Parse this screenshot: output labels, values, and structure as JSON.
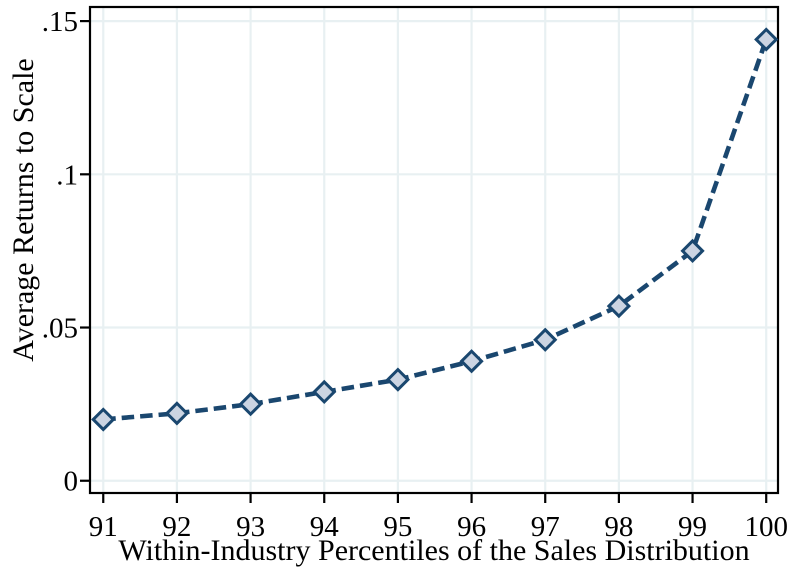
{
  "chart_data": {
    "type": "line",
    "title": "",
    "xlabel": "Within-Industry Percentiles of the Sales Distribution",
    "ylabel": "Average Returns to Scale",
    "x": [
      91,
      92,
      93,
      94,
      95,
      96,
      97,
      98,
      99,
      100
    ],
    "series": [
      {
        "name": "average-returns-to-scale",
        "values": [
          0.02,
          0.022,
          0.025,
          0.029,
          0.033,
          0.039,
          0.046,
          0.057,
          0.075,
          0.144
        ]
      }
    ],
    "xticks": {
      "values": [
        91,
        92,
        93,
        94,
        95,
        96,
        97,
        98,
        99,
        100
      ],
      "labels": [
        "91",
        "92",
        "93",
        "94",
        "95",
        "96",
        "97",
        "98",
        "99",
        "100"
      ]
    },
    "yticks": {
      "values": [
        0,
        0.05,
        0.1,
        0.15
      ],
      "labels": [
        "0",
        ".05",
        ".1",
        ".15"
      ]
    },
    "xlim": [
      90.82,
      100.16
    ],
    "ylim": [
      -0.004,
      0.1546
    ],
    "grid": true,
    "legend": "none",
    "line_style": "dashed",
    "marker": "diamond",
    "colors": {
      "line": "#1a476f",
      "marker_fill": "#cbd4e2",
      "grid": "#e8f0f2",
      "axis": "#000000",
      "background": "#ffffff"
    }
  }
}
